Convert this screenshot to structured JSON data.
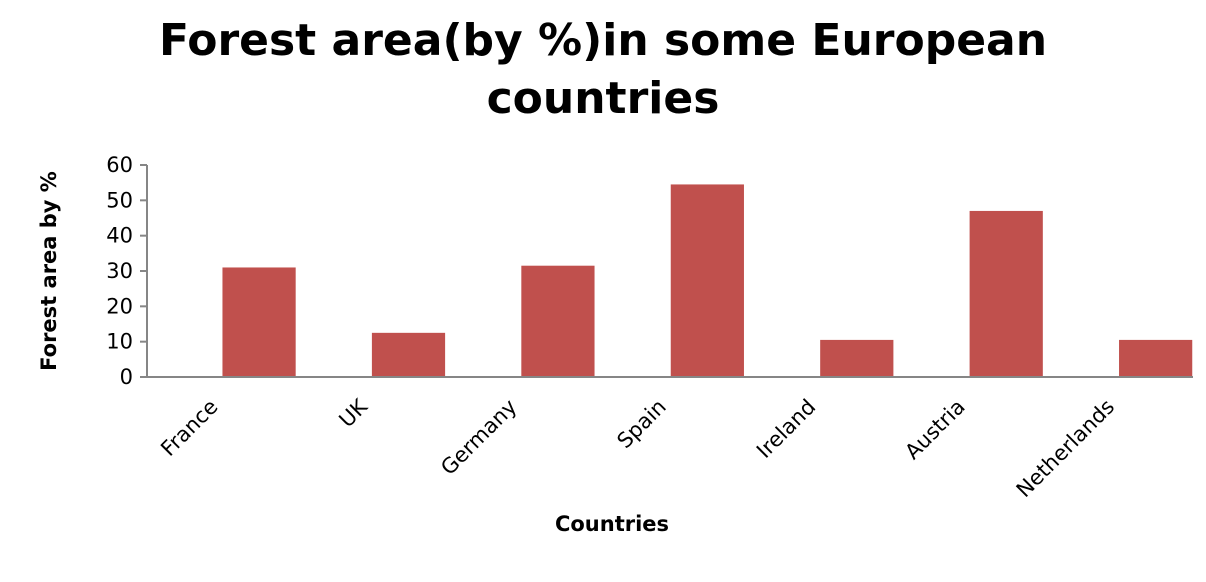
{
  "chart_data": {
    "type": "bar",
    "title": "Forest area(by %)in some European countries",
    "xlabel": "Countries",
    "ylabel": "Forest area by %",
    "categories": [
      "France",
      "UK",
      "Germany",
      "Spain",
      "Ireland",
      "Austria",
      "Netherlands"
    ],
    "series": [
      {
        "values": [
          31,
          12.5,
          31.5,
          54.5,
          10.5,
          47,
          10.5
        ],
        "color": "#c0504d"
      }
    ],
    "ylim": [
      0,
      60
    ],
    "yticks": [
      "0",
      "10",
      "20",
      "30",
      "40",
      "50",
      "60"
    ],
    "grid": false,
    "legend": "none"
  }
}
